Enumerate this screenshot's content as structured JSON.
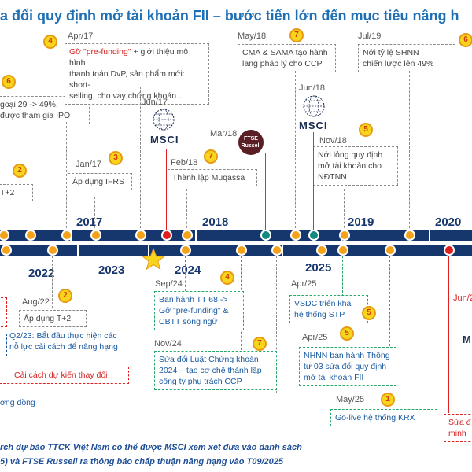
{
  "title": "a đổi quy định mở tài khoản FII – bước tiến lớn đến mục tiêu nâng h",
  "colors": {
    "navy": "#16366e",
    "gray_box": "#8a8a8a",
    "green_box": "#27a86b",
    "red_box": "#e02020",
    "badge_fill": "#f7d51d",
    "dot_orange": "#f5a21b",
    "dot_red": "#e02020",
    "dot_teal": "#138a80",
    "title": "#1f6fb5"
  },
  "upper": {
    "years": [
      "2017",
      "2018",
      "2019",
      "2020"
    ],
    "events": [
      {
        "badge": "6",
        "lines": [
          "goại 29 -> 49%,",
          "được tham gia IPO"
        ]
      },
      {
        "badge": "2",
        "lines": [
          "T+2"
        ]
      },
      {
        "date": "Jan/17",
        "badge": "3",
        "lines": [
          "Áp dụng IFRS"
        ]
      },
      {
        "date": "Apr/17",
        "badge": "4",
        "lines_red": "Gỡ \"pre-funding\"",
        "lines": [
          " + giới thiệu mô hình",
          "thanh toán DvP, sản phẩm mới: short-",
          "selling, cho vay chứng khoán…"
        ]
      },
      {
        "date": "Jun/17",
        "logo": "MSCI"
      },
      {
        "date": "Feb/18",
        "badge": "7",
        "lines": [
          "Thành lập Muqassa"
        ]
      },
      {
        "date": "Mar/18",
        "logo_lines": [
          "FTSE",
          "Russell"
        ]
      },
      {
        "date": "May/18",
        "badge": "7",
        "lines": [
          "CMA & SAMA tạo hành",
          "lang pháp lý cho CCP"
        ]
      },
      {
        "date": "Jun/18",
        "logo": "MSCI"
      },
      {
        "date": "Nov/18",
        "badge": "5",
        "lines": [
          "Nới lỏng quy định",
          "mở tài khoản cho",
          "NĐTNN"
        ]
      },
      {
        "date": "Jul/19",
        "badge": "6",
        "lines": [
          "Nới tỷ lệ SHNN",
          "chiến lược lên 49%"
        ]
      }
    ]
  },
  "lower": {
    "years": [
      "2022",
      "2023",
      "2024",
      "2025"
    ],
    "events": [
      {
        "date": "Aug/22",
        "badge": "2",
        "lines": [
          "Áp dụng T+2"
        ]
      },
      {
        "lines": [
          "Q2/23: Bắt đầu thực hiện các",
          "nỗ lực cải cách để nâng hạng"
        ]
      },
      {
        "lines": [
          "Cải cách dự kiến thay đổi"
        ]
      },
      {
        "lines": [
          "ơng đồng"
        ]
      },
      {
        "date": "Sep/24",
        "badge": "4",
        "lines": [
          "Ban hành TT 68 ->",
          "Gỡ \"pre-funding\" &",
          "CBTT song ngữ"
        ]
      },
      {
        "date": "Nov/24",
        "badge": "7",
        "lines": [
          "Sửa đổi Luật Chứng khoán",
          "2024 – tạo cơ chế thành lập",
          "công ty phụ trách CCP"
        ]
      },
      {
        "date": "Apr/25",
        "badge": "5",
        "lines": [
          "VSDC triển khai",
          "hệ thống STP"
        ]
      },
      {
        "date": "Apr/25",
        "badge": "5",
        "lines": [
          "NHNN ban hành Thông",
          "tư 03 sửa đổi quy định",
          "mở tài khoản FII"
        ]
      },
      {
        "date": "May/25",
        "badge": "1",
        "lines": [
          "Go-live hệ thống KRX"
        ]
      },
      {
        "date": "Jun/2",
        "lines": [
          "Sửa đ",
          "minh"
        ]
      }
    ]
  },
  "footer": {
    "line1": "rch dự báo TTCK Việt Nam có thể được MSCI xem xét đưa vào danh sách",
    "line2": "5) và FTSE Russell ra thông báo chấp thuận nâng hạng vào T09/2025"
  }
}
